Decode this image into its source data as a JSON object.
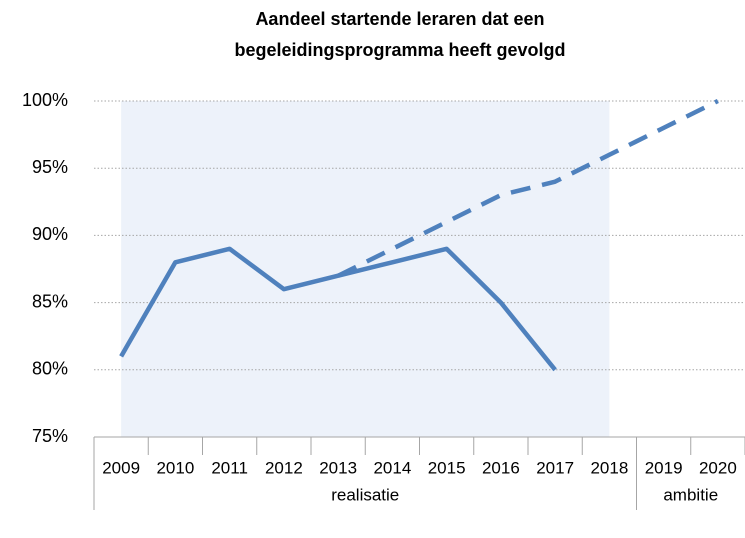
{
  "chart_data": {
    "type": "line",
    "title": [
      "Aandeel startende leraren dat een",
      "begeleidingsprogramma heeft gevolgd"
    ],
    "categories": [
      "2009",
      "2010",
      "2011",
      "2012",
      "2013",
      "2014",
      "2015",
      "2016",
      "2017",
      "2018",
      "2019",
      "2020"
    ],
    "groups": [
      {
        "label": "realisatie",
        "start": "2009",
        "end": "2018"
      },
      {
        "label": "ambitie",
        "start": "2019",
        "end": "2020"
      }
    ],
    "series": [
      {
        "color": "#4f81bd",
        "dashed": false,
        "values": [
          81,
          88,
          89,
          86,
          87,
          88,
          89,
          85,
          80,
          null,
          null,
          null
        ]
      },
      {
        "color": "#4f81bd",
        "dashed": true,
        "values": [
          null,
          null,
          null,
          null,
          87,
          89,
          91,
          93,
          94,
          96,
          98,
          100
        ]
      }
    ],
    "ylim": [
      75,
      100
    ],
    "yticks": [
      {
        "value": 75,
        "label": "75%"
      },
      {
        "value": 80,
        "label": "80%"
      },
      {
        "value": 85,
        "label": "85%"
      },
      {
        "value": 90,
        "label": "90%"
      },
      {
        "value": 95,
        "label": "95%"
      },
      {
        "value": 100,
        "label": "100%"
      }
    ],
    "grid": true
  }
}
